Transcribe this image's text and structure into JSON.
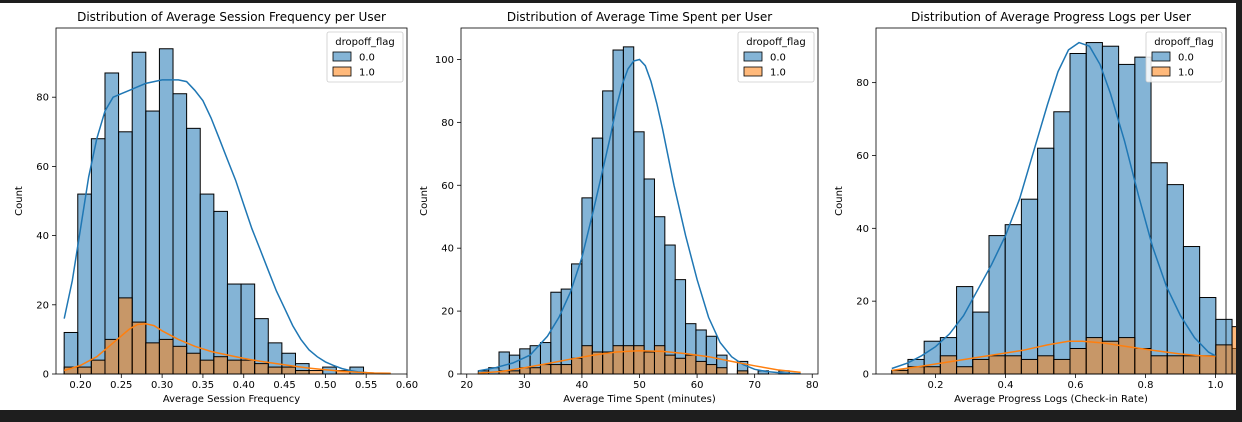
{
  "colors": {
    "blue": "#1f77b4",
    "orange": "#ff7f0e"
  },
  "chart_data": [
    {
      "type": "bar",
      "title": "Distribution of Average Session Frequency per User",
      "xlabel": "Average Session Frequency",
      "ylabel": "Count",
      "xlim": [
        0.17,
        0.6
      ],
      "ylim": [
        0,
        100
      ],
      "xticks": [
        0.2,
        0.25,
        0.3,
        0.35,
        0.4,
        0.45,
        0.5,
        0.55,
        0.6
      ],
      "yticks": [
        0,
        20,
        40,
        60,
        80
      ],
      "xtick_labels": [
        "0.20",
        "0.25",
        "0.30",
        "0.35",
        "0.40",
        "0.45",
        "0.50",
        "0.55",
        "0.60"
      ],
      "ytick_labels": [
        "0",
        "20",
        "40",
        "60",
        "80"
      ],
      "bin_start": 0.18,
      "bin_width": 0.01667,
      "legend": {
        "title": "dropoff_flag",
        "placement": "top-right"
      },
      "series": [
        {
          "name": "0.0",
          "values": [
            12,
            52,
            68,
            87,
            70,
            93,
            76,
            94,
            81,
            71,
            52,
            47,
            26,
            26,
            16,
            9,
            6,
            3,
            0,
            2,
            0,
            2,
            0,
            0,
            0
          ]
        },
        {
          "name": "1.0",
          "values": [
            2,
            2,
            4,
            10,
            22,
            15,
            9,
            10,
            8,
            6,
            4,
            5,
            4,
            4,
            3,
            2,
            2,
            1,
            1,
            0,
            1,
            0,
            0,
            0,
            0
          ]
        }
      ],
      "kde": [
        {
          "name": "0.0",
          "x": [
            0.18,
            0.19,
            0.2,
            0.21,
            0.22,
            0.23,
            0.24,
            0.25,
            0.26,
            0.27,
            0.28,
            0.29,
            0.3,
            0.31,
            0.32,
            0.33,
            0.34,
            0.35,
            0.36,
            0.37,
            0.38,
            0.39,
            0.4,
            0.41,
            0.42,
            0.43,
            0.44,
            0.45,
            0.46,
            0.47,
            0.48,
            0.49,
            0.5,
            0.51,
            0.52,
            0.53,
            0.54,
            0.55,
            0.56,
            0.57,
            0.58
          ],
          "y": [
            16,
            27,
            42,
            57,
            68,
            76,
            80,
            81,
            82,
            83,
            84,
            84.5,
            85,
            85,
            85,
            84.5,
            82,
            79,
            74,
            68,
            62,
            56,
            49,
            42,
            36,
            30,
            24,
            19,
            14,
            10,
            7,
            5,
            3.5,
            2.5,
            1.6,
            1,
            0.6,
            0.4,
            0.2,
            0.1,
            0.05
          ]
        },
        {
          "name": "1.0",
          "x": [
            0.18,
            0.2,
            0.22,
            0.24,
            0.26,
            0.27,
            0.28,
            0.29,
            0.3,
            0.32,
            0.34,
            0.36,
            0.38,
            0.4,
            0.42,
            0.44,
            0.46,
            0.48,
            0.5,
            0.52,
            0.54,
            0.56,
            0.58
          ],
          "y": [
            1,
            2.5,
            5,
            9,
            13,
            14.3,
            14.5,
            14,
            12.5,
            10,
            8,
            6.5,
            5.5,
            4.5,
            3.7,
            3,
            2.3,
            1.7,
            1.2,
            0.8,
            0.5,
            0.3,
            0.2
          ]
        }
      ]
    },
    {
      "type": "bar",
      "title": "Distribution of Average Time Spent per User",
      "xlabel": "Average Time Spent (minutes)",
      "ylabel": "Count",
      "xlim": [
        19,
        81
      ],
      "ylim": [
        0,
        110
      ],
      "xticks": [
        20,
        30,
        40,
        50,
        60,
        70,
        80
      ],
      "yticks": [
        0,
        20,
        40,
        60,
        80,
        100
      ],
      "xtick_labels": [
        "20",
        "30",
        "40",
        "50",
        "60",
        "70",
        "80"
      ],
      "ytick_labels": [
        "0",
        "20",
        "40",
        "60",
        "80",
        "100"
      ],
      "bin_start": 22,
      "bin_width": 1.8,
      "legend": {
        "title": "dropoff_flag",
        "placement": "top-right"
      },
      "series": [
        {
          "name": "0.0",
          "values": [
            1,
            2,
            7,
            6,
            8,
            9,
            10,
            26,
            27,
            35,
            56,
            75,
            90,
            103,
            104,
            77,
            62,
            50,
            41,
            30,
            16,
            14,
            12,
            6,
            0,
            4,
            0,
            1,
            0,
            1,
            0
          ]
        },
        {
          "name": "1.0",
          "values": [
            0,
            0,
            1,
            1,
            2,
            2,
            3,
            3,
            3,
            5,
            9,
            7,
            7,
            9,
            9,
            9,
            7,
            9,
            6,
            5,
            6,
            4,
            3,
            2,
            0,
            1,
            0,
            0,
            0,
            0,
            0
          ]
        }
      ],
      "kde": [
        {
          "name": "0.0",
          "x": [
            22,
            25,
            28,
            31,
            34,
            36,
            38,
            40,
            42,
            44,
            45,
            46,
            47,
            48,
            49,
            50,
            51,
            52,
            53,
            54,
            56,
            58,
            60,
            62,
            64,
            66,
            68,
            70,
            72,
            75,
            78
          ],
          "y": [
            1,
            2,
            3.5,
            6,
            12,
            18,
            26,
            37,
            52,
            68,
            76,
            85,
            92,
            97,
            99.5,
            100,
            98,
            93,
            86,
            78,
            60,
            44,
            30,
            18,
            10,
            5.5,
            3,
            1.5,
            0.8,
            0.3,
            0.1
          ]
        },
        {
          "name": "1.0",
          "x": [
            22,
            26,
            30,
            34,
            38,
            42,
            46,
            50,
            54,
            58,
            62,
            66,
            70,
            74,
            78
          ],
          "y": [
            0.3,
            0.8,
            2,
            3.3,
            4.7,
            6,
            7,
            7.4,
            7.2,
            6.5,
            5.5,
            4,
            2.6,
            1.3,
            0.5
          ]
        }
      ]
    },
    {
      "type": "bar",
      "title": "Distribution of Average Progress Logs per User",
      "xlabel": "Average Progress Logs (Check-in Rate)",
      "ylabel": "Count",
      "xlim": [
        0.03,
        1.03
      ],
      "ylim": [
        0,
        95
      ],
      "xticks": [
        0.2,
        0.4,
        0.6,
        0.8,
        1.0
      ],
      "yticks": [
        0,
        20,
        40,
        60,
        80
      ],
      "xtick_labels": [
        "0.2",
        "0.4",
        "0.6",
        "0.8",
        "1.0"
      ],
      "ytick_labels": [
        "0",
        "20",
        "40",
        "60",
        "80"
      ],
      "bin_start": 0.075,
      "bin_width": 0.0463,
      "legend": {
        "title": "dropoff_flag",
        "placement": "top-right"
      },
      "series": [
        {
          "name": "0.0",
          "values": [
            1,
            4,
            9,
            10,
            24,
            17,
            38,
            41,
            48,
            62,
            72,
            88,
            91,
            90,
            85,
            87,
            58,
            52,
            35,
            21,
            15,
            7
          ]
        },
        {
          "name": "1.0",
          "values": [
            1,
            2,
            2,
            5,
            2,
            4,
            5,
            5,
            4,
            5,
            4,
            7,
            10,
            9,
            10,
            7,
            5,
            5,
            5,
            5,
            8,
            13
          ]
        }
      ],
      "kde": [
        {
          "name": "0.0",
          "x": [
            0.075,
            0.12,
            0.16,
            0.2,
            0.24,
            0.28,
            0.32,
            0.36,
            0.4,
            0.44,
            0.48,
            0.52,
            0.55,
            0.58,
            0.61,
            0.64,
            0.67,
            0.7,
            0.74,
            0.78,
            0.82,
            0.86,
            0.9,
            0.94,
            0.98,
            1.0
          ],
          "y": [
            1.5,
            3,
            5,
            7.5,
            11,
            16,
            23,
            30,
            38,
            48,
            61,
            74,
            83,
            89,
            91,
            90,
            85,
            77,
            64,
            49,
            35,
            24,
            16,
            10,
            6,
            5
          ]
        },
        {
          "name": "1.0",
          "x": [
            0.075,
            0.15,
            0.25,
            0.35,
            0.45,
            0.52,
            0.58,
            0.62,
            0.68,
            0.75,
            0.82,
            0.9,
            0.96,
            1.0
          ],
          "y": [
            1,
            2,
            3.5,
            5,
            6.5,
            8,
            9,
            9,
            8.5,
            7.5,
            6.5,
            5.5,
            5,
            4.8
          ]
        }
      ]
    }
  ]
}
